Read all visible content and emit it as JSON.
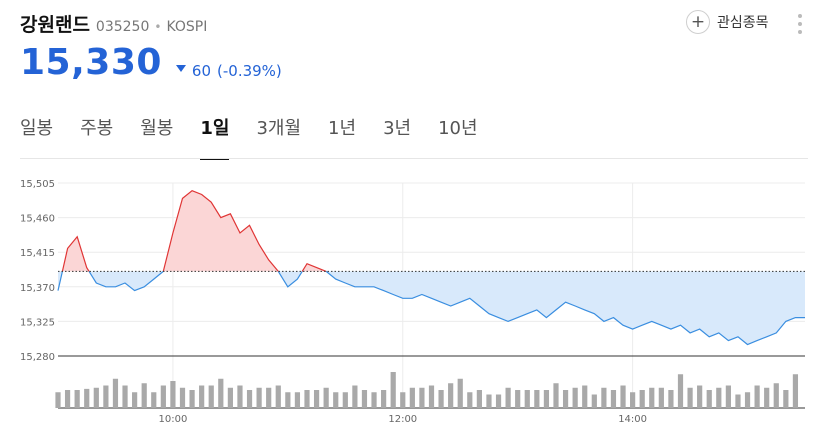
{
  "stock": {
    "name": "강원랜드",
    "code": "035250",
    "market": "KOSPI",
    "price": "15,330",
    "change": "60",
    "change_pct": "(-0.39%)",
    "direction": "down"
  },
  "actions": {
    "watch_label": "관심종목",
    "watch_icon": "plus-icon",
    "more_icon": "more-vertical-icon"
  },
  "tabs": [
    {
      "label": "일봉",
      "active": false
    },
    {
      "label": "주봉",
      "active": false
    },
    {
      "label": "월봉",
      "active": false
    },
    {
      "label": "1일",
      "active": true
    },
    {
      "label": "3개월",
      "active": false
    },
    {
      "label": "1년",
      "active": false
    },
    {
      "label": "3년",
      "active": false
    },
    {
      "label": "10년",
      "active": false
    }
  ],
  "colors": {
    "down": "#2463d6",
    "up_line": "#e03535",
    "up_fill": "#fbd6d6",
    "down_line": "#3a8ee0",
    "down_fill": "#d8e9fb",
    "volume": "#a9a9a9"
  },
  "chart_data": {
    "type": "area",
    "prev_close": 15390,
    "ylim": [
      15280,
      15505
    ],
    "y_ticks": [
      "15,505",
      "15,460",
      "15,415",
      "15,370",
      "15,325",
      "15,280"
    ],
    "x_ticks": [
      "10:00",
      "12:00",
      "14:00"
    ],
    "x": [
      "09:00",
      "09:05",
      "09:10",
      "09:15",
      "09:20",
      "09:25",
      "09:30",
      "09:35",
      "09:40",
      "09:45",
      "09:50",
      "09:55",
      "10:00",
      "10:05",
      "10:10",
      "10:15",
      "10:20",
      "10:25",
      "10:30",
      "10:35",
      "10:40",
      "10:45",
      "10:50",
      "10:55",
      "11:00",
      "11:05",
      "11:10",
      "11:15",
      "11:20",
      "11:25",
      "11:30",
      "11:35",
      "11:40",
      "11:45",
      "11:50",
      "11:55",
      "12:00",
      "12:05",
      "12:10",
      "12:15",
      "12:20",
      "12:25",
      "12:30",
      "12:35",
      "12:40",
      "12:45",
      "12:50",
      "12:55",
      "13:00",
      "13:05",
      "13:10",
      "13:15",
      "13:20",
      "13:25",
      "13:30",
      "13:35",
      "13:40",
      "13:45",
      "13:50",
      "13:55",
      "14:00",
      "14:05",
      "14:10",
      "14:15",
      "14:20",
      "14:25",
      "14:30",
      "14:35",
      "14:40",
      "14:45",
      "14:50",
      "14:55",
      "15:00",
      "15:05",
      "15:10",
      "15:15",
      "15:20",
      "15:25",
      "15:30"
    ],
    "price": [
      15365,
      15420,
      15435,
      15395,
      15375,
      15370,
      15370,
      15375,
      15365,
      15370,
      15380,
      15390,
      15440,
      15485,
      15495,
      15490,
      15480,
      15460,
      15465,
      15440,
      15450,
      15425,
      15405,
      15390,
      15370,
      15380,
      15400,
      15395,
      15390,
      15380,
      15375,
      15370,
      15370,
      15370,
      15365,
      15360,
      15355,
      15355,
      15360,
      15355,
      15350,
      15345,
      15350,
      15355,
      15345,
      15335,
      15330,
      15325,
      15330,
      15335,
      15340,
      15330,
      15340,
      15350,
      15345,
      15340,
      15335,
      15325,
      15330,
      15320,
      15315,
      15320,
      15325,
      15320,
      15315,
      15320,
      15310,
      15315,
      15305,
      15310,
      15300,
      15305,
      15295,
      15300,
      15305,
      15310,
      15325,
      15330,
      15330
    ],
    "volume": [
      14,
      16,
      16,
      17,
      18,
      20,
      26,
      20,
      14,
      22,
      14,
      20,
      24,
      18,
      16,
      20,
      20,
      26,
      18,
      20,
      16,
      18,
      18,
      20,
      14,
      14,
      16,
      16,
      18,
      14,
      14,
      20,
      16,
      14,
      16,
      32,
      14,
      18,
      18,
      20,
      16,
      22,
      26,
      14,
      16,
      12,
      12,
      18,
      16,
      16,
      16,
      16,
      22,
      16,
      18,
      20,
      12,
      18,
      16,
      20,
      14,
      16,
      18,
      18,
      16,
      30,
      18,
      20,
      16,
      18,
      20,
      12,
      14,
      20,
      18,
      22,
      16,
      30,
      0
    ]
  }
}
